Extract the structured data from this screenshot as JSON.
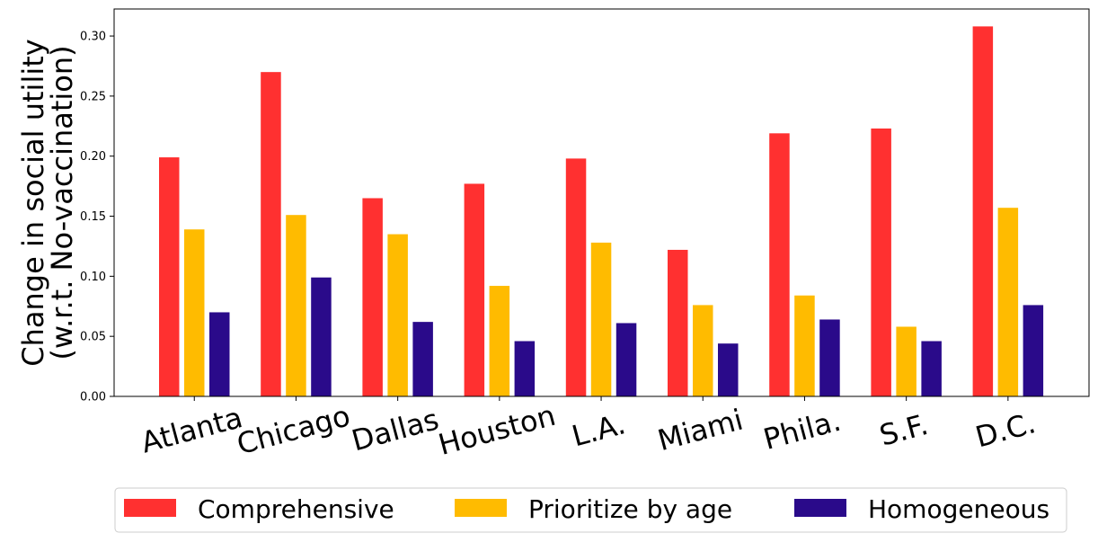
{
  "chart_data": {
    "type": "bar",
    "categories": [
      "Atlanta",
      "Chicago",
      "Dallas",
      "Houston",
      "L.A.",
      "Miami",
      "Phila.",
      "S.F.",
      "D.C."
    ],
    "series": [
      {
        "name": "Comprehensive",
        "color": "#ff3030",
        "values": [
          0.199,
          0.27,
          0.165,
          0.177,
          0.198,
          0.122,
          0.219,
          0.223,
          0.308
        ]
      },
      {
        "name": "Prioritize by age",
        "color": "#ffbb00",
        "values": [
          0.139,
          0.151,
          0.135,
          0.092,
          0.128,
          0.076,
          0.084,
          0.058,
          0.157
        ]
      },
      {
        "name": "Homogeneous",
        "color": "#2a0a8a",
        "values": [
          0.07,
          0.099,
          0.062,
          0.046,
          0.061,
          0.044,
          0.064,
          0.046,
          0.076
        ]
      }
    ],
    "title": "",
    "xlabel": "",
    "ylabel_lines": [
      "Change in social utility",
      "(w.r.t. No-vaccination)"
    ],
    "ylim": [
      0,
      0.3225
    ],
    "yticks": [
      "0.00",
      "0.05",
      "0.10",
      "0.15",
      "0.20",
      "0.25",
      "0.30"
    ],
    "grid": false,
    "legend_position": "bottom"
  }
}
